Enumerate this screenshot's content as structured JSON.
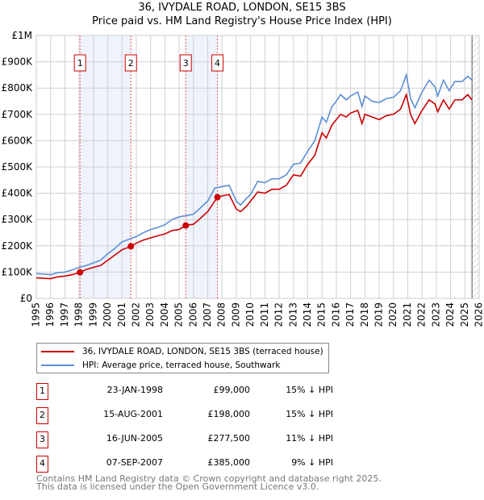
{
  "title": "36, IVYDALE ROAD, LONDON, SE15 3BS",
  "subtitle": "Price paid vs. HM Land Registry's House Price Index (HPI)",
  "chart_data": {
    "type": "line",
    "title": "36, IVYDALE ROAD, LONDON, SE15 3BS",
    "subtitle": "Price paid vs. HM Land Registry's House Price Index (HPI)",
    "xlim": [
      1995,
      2026
    ],
    "ylim": [
      0,
      1000000
    ],
    "grid": true,
    "x_ticks": [
      "1995",
      "1996",
      "1997",
      "1998",
      "1999",
      "2000",
      "2001",
      "2002",
      "2003",
      "2004",
      "2005",
      "2006",
      "2007",
      "2008",
      "2009",
      "2010",
      "2011",
      "2012",
      "2013",
      "2014",
      "2015",
      "2016",
      "2017",
      "2018",
      "2019",
      "2020",
      "2021",
      "2022",
      "2023",
      "2024",
      "2025",
      "2026"
    ],
    "y_ticks": [
      {
        "v": 0,
        "label": "£0"
      },
      {
        "v": 100000,
        "label": "£100K"
      },
      {
        "v": 200000,
        "label": "£200K"
      },
      {
        "v": 300000,
        "label": "£300K"
      },
      {
        "v": 400000,
        "label": "£400K"
      },
      {
        "v": 500000,
        "label": "£500K"
      },
      {
        "v": 600000,
        "label": "£600K"
      },
      {
        "v": 700000,
        "label": "£700K"
      },
      {
        "v": 800000,
        "label": "£800K"
      },
      {
        "v": 900000,
        "label": "£900K"
      },
      {
        "v": 1000000,
        "label": "£1M"
      }
    ],
    "forecast_start": 2025.5,
    "series": [
      {
        "name": "36, IVYDALE ROAD, LONDON, SE15 3BS (terraced house)",
        "color": "#cc0000",
        "x": [
          1995,
          1996,
          1996.5,
          1997,
          1997.5,
          1998.06,
          1998.5,
          1999,
          1999.5,
          2000,
          2000.5,
          2001,
          2001.62,
          2002,
          2002.5,
          2003,
          2003.5,
          2004,
          2004.5,
          2005,
          2005.46,
          2006,
          2006.5,
          2007,
          2007.68,
          2008,
          2008.5,
          2009,
          2009.3,
          2009.7,
          2010,
          2010.5,
          2011,
          2011.5,
          2012,
          2012.5,
          2013,
          2013.5,
          2014,
          2014.5,
          2015,
          2015.3,
          2015.7,
          2016,
          2016.3,
          2016.7,
          2017,
          2017.5,
          2017.8,
          2018,
          2018.5,
          2019,
          2019.5,
          2020,
          2020.5,
          2020.9,
          2021.2,
          2021.5,
          2022,
          2022.5,
          2022.9,
          2023.1,
          2023.5,
          2023.9,
          2024.3,
          2024.8,
          2025.2,
          2025.5
        ],
        "y": [
          78,
          75,
          82,
          85,
          90,
          99,
          110,
          118,
          125,
          145,
          165,
          185,
          198,
          210,
          222,
          230,
          238,
          245,
          258,
          262,
          277.5,
          282,
          305,
          330,
          385,
          390,
          395,
          340,
          330,
          350,
          370,
          405,
          400,
          415,
          415,
          430,
          470,
          465,
          510,
          545,
          630,
          610,
          660,
          680,
          700,
          690,
          705,
          715,
          665,
          700,
          690,
          680,
          695,
          700,
          720,
          775,
          700,
          665,
          715,
          755,
          740,
          710,
          755,
          720,
          755,
          755,
          775,
          755
        ]
      },
      {
        "name": "HPI: Average price, terraced house, Southwark",
        "color": "#5b8fd6",
        "x": [
          1995,
          1996,
          1996.5,
          1997,
          1997.5,
          1998,
          1998.5,
          1999,
          1999.5,
          2000,
          2000.5,
          2001,
          2001.5,
          2002,
          2002.5,
          2003,
          2003.5,
          2004,
          2004.5,
          2005,
          2005.5,
          2006,
          2006.5,
          2007,
          2007.5,
          2008,
          2008.5,
          2009,
          2009.3,
          2009.7,
          2010,
          2010.5,
          2011,
          2011.5,
          2012,
          2012.5,
          2013,
          2013.5,
          2014,
          2014.5,
          2015,
          2015.3,
          2015.7,
          2016,
          2016.3,
          2016.7,
          2017,
          2017.5,
          2017.8,
          2018,
          2018.5,
          2019,
          2019.5,
          2020,
          2020.5,
          2020.9,
          2021.2,
          2021.5,
          2022,
          2022.5,
          2022.9,
          2023.1,
          2023.5,
          2023.9,
          2024.3,
          2024.8,
          2025.2,
          2025.5
        ],
        "y": [
          95,
          90,
          98,
          100,
          108,
          118,
          125,
          135,
          145,
          170,
          190,
          215,
          225,
          235,
          250,
          262,
          270,
          280,
          300,
          310,
          315,
          320,
          345,
          370,
          420,
          425,
          430,
          370,
          355,
          380,
          395,
          445,
          440,
          455,
          455,
          470,
          510,
          515,
          560,
          600,
          690,
          670,
          730,
          750,
          775,
          755,
          770,
          785,
          730,
          770,
          750,
          745,
          760,
          765,
          790,
          850,
          760,
          725,
          785,
          830,
          805,
          770,
          830,
          790,
          825,
          825,
          845,
          830
        ]
      }
    ],
    "y_units": "thousands GBP",
    "sales": [
      {
        "id": "1",
        "x": 1998.06,
        "y": 99
      },
      {
        "id": "2",
        "x": 2001.62,
        "y": 198
      },
      {
        "id": "3",
        "x": 2005.46,
        "y": 277.5
      },
      {
        "id": "4",
        "x": 2007.68,
        "y": 385
      }
    ],
    "shaded_ranges": [
      [
        1998.06,
        2001.62
      ],
      [
        2005.46,
        2007.68
      ]
    ]
  },
  "legend": {
    "property": "36, IVYDALE ROAD, LONDON, SE15 3BS (terraced house)",
    "hpi": "HPI: Average price, terraced house, Southwark"
  },
  "transactions": [
    {
      "id": "1",
      "date": "23-JAN-1998",
      "price": "£99,000",
      "diff": "15% ↓ HPI"
    },
    {
      "id": "2",
      "date": "15-AUG-2001",
      "price": "£198,000",
      "diff": "15% ↓ HPI"
    },
    {
      "id": "3",
      "date": "16-JUN-2005",
      "price": "£277,500",
      "diff": "11% ↓ HPI"
    },
    {
      "id": "4",
      "date": "07-SEP-2007",
      "price": "£385,000",
      "diff": "9% ↓ HPI"
    }
  ],
  "footer": {
    "line1": "Contains HM Land Registry data © Crown copyright and database right 2025.",
    "line2": "This data is licensed under the Open Government Licence v3.0."
  }
}
